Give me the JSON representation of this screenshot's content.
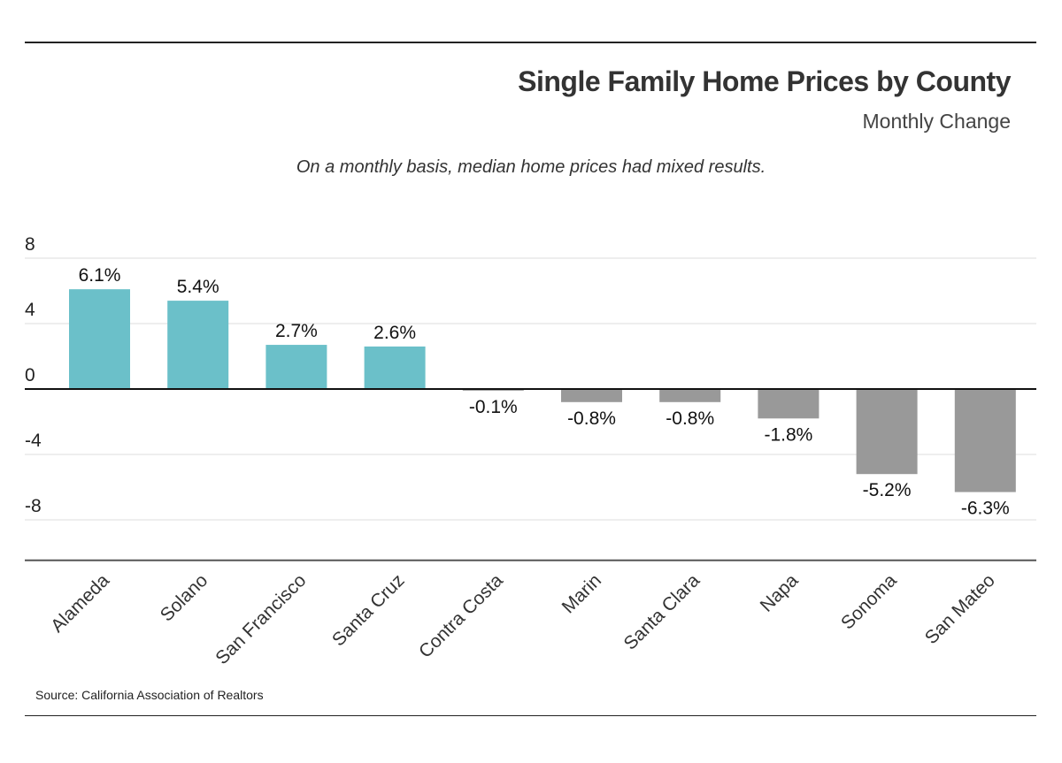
{
  "header": {
    "title": "Single Family Home Prices by County",
    "subtitle": "Monthly Change",
    "caption": "On a monthly basis, median home prices had mixed results."
  },
  "footer": {
    "source": "Source:  California Association of Realtors"
  },
  "colors": {
    "positive": "#6bc0c9",
    "negative": "#999999",
    "gridline": "#dddddd",
    "zero_line": "#111111",
    "axis_line": "#555555"
  },
  "chart_data": {
    "type": "bar",
    "categories": [
      "Alameda",
      "Solano",
      "San Francisco",
      "Santa Cruz",
      "Contra Costa",
      "Marin",
      "Santa Clara",
      "Napa",
      "Sonoma",
      "San Mateo"
    ],
    "values": [
      6.1,
      5.4,
      2.7,
      2.6,
      -0.1,
      -0.8,
      -0.8,
      -1.8,
      -5.2,
      -6.3
    ],
    "data_labels": [
      "6.1%",
      "5.4%",
      "2.7%",
      "2.6%",
      "-0.1%",
      "-0.8%",
      "-0.8%",
      "-1.8%",
      "-5.2%",
      "-6.3%"
    ],
    "y_ticks": [
      8,
      4,
      0,
      -4,
      -8
    ],
    "ylim": [
      -10.5,
      8
    ],
    "grid": true,
    "legend": "none"
  }
}
